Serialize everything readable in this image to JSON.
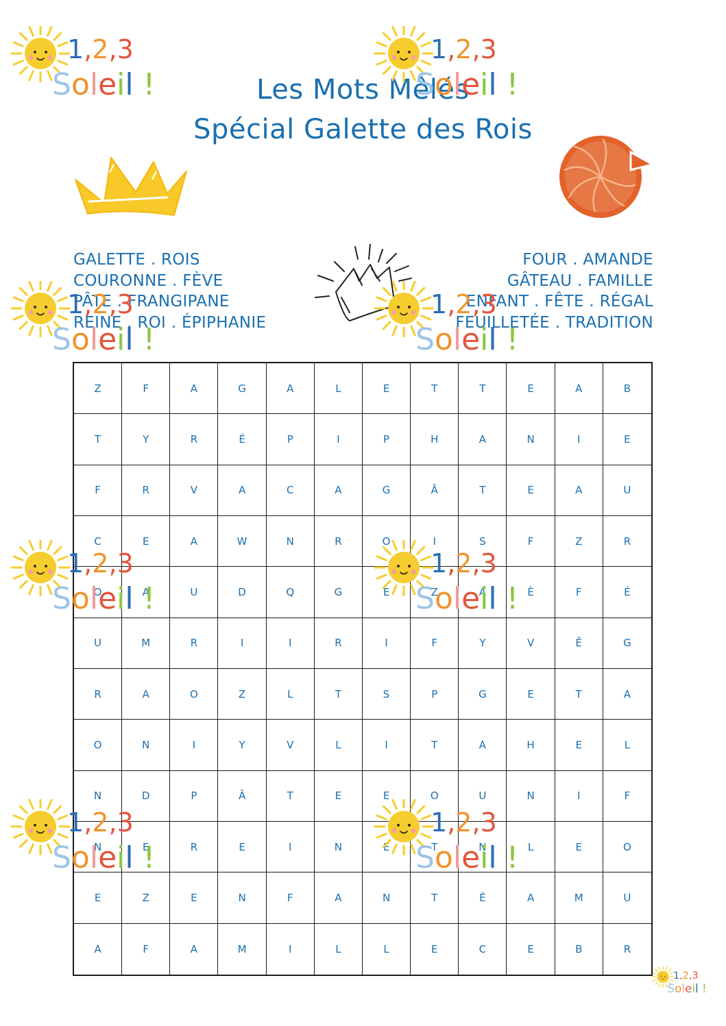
{
  "title": {
    "line1": "Les Mots Mêlés",
    "line2": "Spécial Galette des Rois"
  },
  "word_list": {
    "left": [
      "GALETTE . ROIS",
      "COURONNE . FÈVE",
      "PÂTE . FRANGIPANE",
      "REINE . ROI . ÉPIPHANIE"
    ],
    "right": [
      "FOUR . AMANDE",
      "GÂTEAU . FAMILLE",
      "ENFANT . FÊTE . RÉGAL",
      "FEUILLETÉE . TRADITION"
    ]
  },
  "grid": [
    [
      "Z",
      "F",
      "A",
      "G",
      "A",
      "L",
      "E",
      "T",
      "T",
      "E",
      "A",
      "B"
    ],
    [
      "T",
      "Y",
      "R",
      "É",
      "P",
      "I",
      "P",
      "H",
      "A",
      "N",
      "I",
      "E"
    ],
    [
      "F",
      "R",
      "V",
      "A",
      "C",
      "A",
      "G",
      "Â",
      "T",
      "E",
      "A",
      "U"
    ],
    [
      "C",
      "E",
      "A",
      "W",
      "N",
      "R",
      "O",
      "I",
      "S",
      "F",
      "Z",
      "R"
    ],
    [
      "O",
      "A",
      "U",
      "D",
      "Q",
      "G",
      "E",
      "Z",
      "A",
      "È",
      "F",
      "É"
    ],
    [
      "U",
      "M",
      "R",
      "I",
      "I",
      "R",
      "I",
      "F",
      "Y",
      "V",
      "Ê",
      "G"
    ],
    [
      "R",
      "A",
      "O",
      "Z",
      "L",
      "T",
      "S",
      "P",
      "G",
      "E",
      "T",
      "A"
    ],
    [
      "O",
      "N",
      "I",
      "Y",
      "V",
      "L",
      "I",
      "T",
      "A",
      "H",
      "E",
      "L"
    ],
    [
      "N",
      "D",
      "P",
      "Â",
      "T",
      "E",
      "E",
      "O",
      "U",
      "N",
      "I",
      "F"
    ],
    [
      "N",
      "E",
      "R",
      "E",
      "I",
      "N",
      "E",
      "T",
      "N",
      "L",
      "E",
      "O"
    ],
    [
      "E",
      "Z",
      "E",
      "N",
      "F",
      "A",
      "N",
      "T",
      "É",
      "A",
      "M",
      "U"
    ],
    [
      "A",
      "F",
      "A",
      "M",
      "I",
      "L",
      "L",
      "E",
      "C",
      "E",
      "B",
      "R"
    ]
  ],
  "watermark": {
    "numbers": "1,2,3",
    "word": "Soleil",
    "mark": "!"
  },
  "colors": {
    "text_blue": "#1a6fb0",
    "sun_yellow": "#f6cd2e",
    "crown_yellow": "#f8c928",
    "galette_orange": "#e2622a",
    "wm_blue": "#2b6cb5",
    "wm_red": "#e2553d",
    "wm_orange": "#f0932b",
    "wm_lightblue": "#9ec4e8",
    "wm_pink": "#f39a9a",
    "wm_green": "#8cc63f"
  },
  "icons": [
    "sun-icon",
    "crown-icon",
    "galette-icon",
    "party-crown-icon"
  ]
}
